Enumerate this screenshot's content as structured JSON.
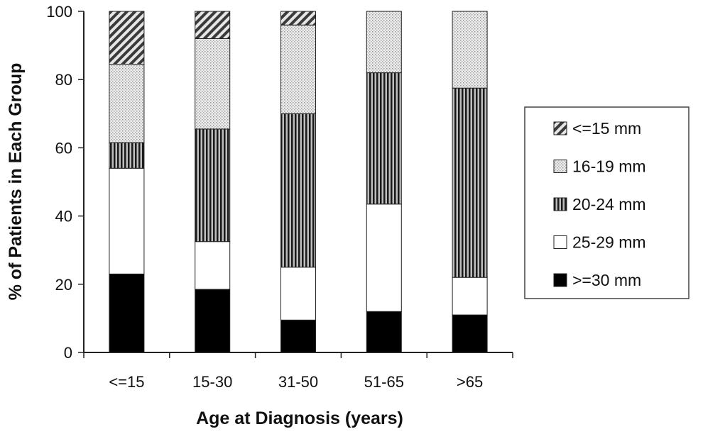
{
  "chart_data": {
    "type": "bar",
    "stacked": true,
    "title": "",
    "xlabel": "Age at Diagnosis (years)",
    "ylabel": "% of Patients in Each Group",
    "ylim": [
      0,
      100
    ],
    "yticks": [
      0,
      20,
      40,
      60,
      80,
      100
    ],
    "grid": false,
    "legend_position": "right",
    "categories": [
      "<=15",
      "15-30",
      "31-50",
      "51-65",
      ">65"
    ],
    "series": [
      {
        "name": ">=30 mm",
        "pattern": "solid-black",
        "values": [
          23,
          18.5,
          9.5,
          12,
          11
        ]
      },
      {
        "name": "25-29 mm",
        "pattern": "white",
        "values": [
          31,
          14,
          15.5,
          31.5,
          11
        ]
      },
      {
        "name": "20-24 mm",
        "pattern": "vertical-stripes",
        "values": [
          7.5,
          33,
          45,
          38.5,
          55.5
        ]
      },
      {
        "name": "16-19 mm",
        "pattern": "light-dots",
        "values": [
          23,
          26.5,
          26,
          18,
          22.5
        ]
      },
      {
        "name": "<=15 mm",
        "pattern": "diagonal-hatch",
        "values": [
          15.5,
          8,
          4,
          0,
          0
        ]
      }
    ],
    "legend_order": [
      "<=15 mm",
      "16-19 mm",
      "20-24 mm",
      "25-29 mm",
      ">=30 mm"
    ]
  }
}
